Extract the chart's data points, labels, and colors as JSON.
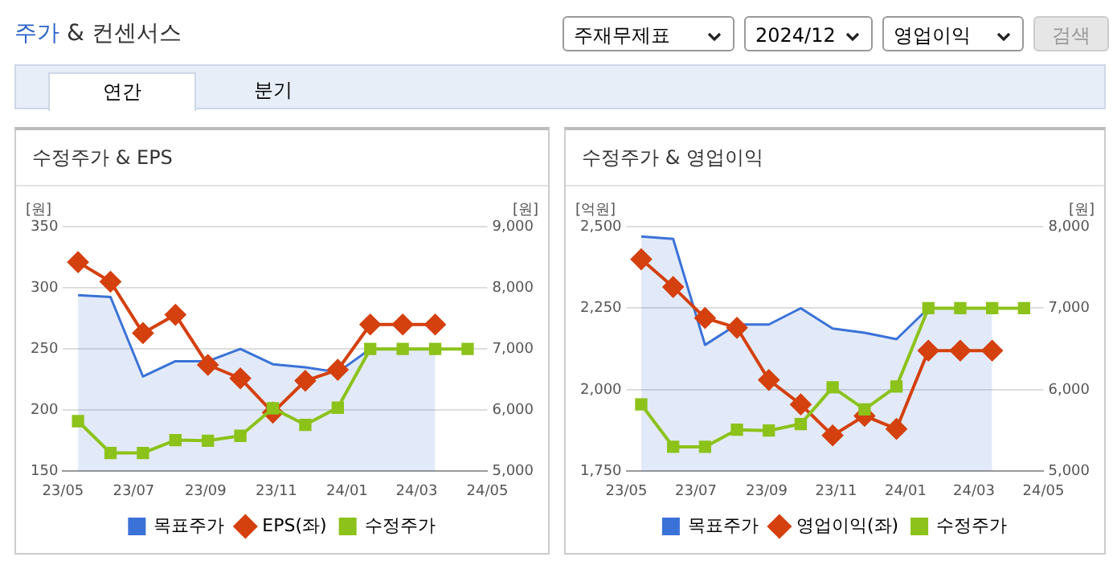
{
  "chart_data": [
    {
      "type": "other",
      "title": "주가 & 컨센서스",
      "annotations": [
        "주재무제표",
        "2024/12",
        "영업이익",
        "검색",
        "연간",
        "분기"
      ]
    },
    {
      "type": "line",
      "title": "수정주가 & EPS",
      "ylabel": "[원]",
      "y2label": "[원]",
      "grid": "y",
      "legend": "bottom",
      "x": [
        "2023-05-14",
        "2023-06-11",
        "2023-07-09",
        "2023-08-06",
        "2023-09-03",
        "2023-10-01",
        "2023-10-29",
        "2023-11-26",
        "2023-12-24",
        "2024-01-21",
        "2024-02-18",
        "2024-03-17",
        "2024-04-14"
      ],
      "xlim": [
        "2023-05",
        "2024-05"
      ],
      "xticks": [
        {
          "value": "2023-05",
          "label": "23/05"
        },
        {
          "value": "2023-07",
          "label": "23/07"
        },
        {
          "value": "2023-09",
          "label": "23/09"
        },
        {
          "value": "2023-11",
          "label": "23/11"
        },
        {
          "value": "2024-01",
          "label": "24/01"
        },
        {
          "value": "2024-03",
          "label": "24/03"
        },
        {
          "value": "2024-05",
          "label": "24/05"
        }
      ],
      "ylim": [
        150,
        350
      ],
      "yticks": [
        150,
        200,
        250,
        300,
        350
      ],
      "y2lim": [
        5000,
        9000
      ],
      "y2ticks": [
        {
          "value": 5000,
          "label": "5,000"
        },
        {
          "value": 6000,
          "label": "6,000"
        },
        {
          "value": 7000,
          "label": "7,000"
        },
        {
          "value": 8000,
          "label": "8,000"
        },
        {
          "value": 9000,
          "label": "9,000"
        }
      ],
      "series": [
        {
          "name": "목표주가",
          "type": "area",
          "color": "#3a72d8",
          "axis": "y2",
          "marker": "none",
          "values": [
            7880,
            7850,
            6550,
            6800,
            6800,
            7000,
            6750,
            6700,
            6620,
            7000,
            7000,
            7000,
            null
          ]
        },
        {
          "name": "EPS(좌)",
          "type": "line",
          "color": "#d4400e",
          "axis": "y",
          "marker": "diamond",
          "values": [
            321,
            305,
            263,
            278,
            237,
            226,
            198,
            224,
            233,
            270,
            270,
            270,
            null
          ]
        },
        {
          "name": "수정주가",
          "type": "line",
          "color": "#8cc21a",
          "axis": "y2",
          "marker": "square",
          "values": [
            5820,
            5300,
            5300,
            5510,
            5500,
            5580,
            6030,
            5760,
            6040,
            7000,
            7000,
            7000,
            7000
          ]
        }
      ]
    },
    {
      "type": "line",
      "title": "수정주가 & 영업이익",
      "ylabel": "[억원]",
      "y2label": "[원]",
      "grid": "y",
      "legend": "bottom",
      "x": [
        "2023-05-14",
        "2023-06-11",
        "2023-07-09",
        "2023-08-06",
        "2023-09-03",
        "2023-10-01",
        "2023-10-29",
        "2023-11-26",
        "2023-12-24",
        "2024-01-21",
        "2024-02-18",
        "2024-03-17",
        "2024-04-14"
      ],
      "xlim": [
        "2023-05",
        "2024-05"
      ],
      "xticks": [
        {
          "value": "2023-05",
          "label": "23/05"
        },
        {
          "value": "2023-07",
          "label": "23/07"
        },
        {
          "value": "2023-09",
          "label": "23/09"
        },
        {
          "value": "2023-11",
          "label": "23/11"
        },
        {
          "value": "2024-01",
          "label": "24/01"
        },
        {
          "value": "2024-03",
          "label": "24/03"
        },
        {
          "value": "2024-05",
          "label": "24/05"
        }
      ],
      "ylim": [
        1750,
        2500
      ],
      "yticks": [
        {
          "value": 1750,
          "label": "1,750"
        },
        {
          "value": 2000,
          "label": "2,000"
        },
        {
          "value": 2250,
          "label": "2,250"
        },
        {
          "value": 2500,
          "label": "2,500"
        }
      ],
      "y2lim": [
        5000,
        8000
      ],
      "y2ticks": [
        {
          "value": 5000,
          "label": "5,000"
        },
        {
          "value": 6000,
          "label": "6,000"
        },
        {
          "value": 7000,
          "label": "7,000"
        },
        {
          "value": 8000,
          "label": "8,000"
        }
      ],
      "series": [
        {
          "name": "목표주가",
          "type": "area",
          "color": "#3a72d8",
          "axis": "y2",
          "marker": "none",
          "values": [
            7880,
            7850,
            6550,
            6800,
            6800,
            7000,
            6750,
            6700,
            6620,
            7000,
            7000,
            7000,
            null
          ]
        },
        {
          "name": "영업이익(좌)",
          "type": "line",
          "color": "#d4400e",
          "axis": "y",
          "marker": "diamond",
          "values": [
            2400,
            2315,
            2220,
            2190,
            2030,
            1955,
            1860,
            1920,
            1880,
            2120,
            2120,
            2120,
            null
          ]
        },
        {
          "name": "수정주가",
          "type": "line",
          "color": "#8cc21a",
          "axis": "y2",
          "marker": "square",
          "values": [
            5820,
            5300,
            5300,
            5510,
            5500,
            5580,
            6030,
            5760,
            6040,
            7000,
            7000,
            7000,
            7000
          ]
        }
      ]
    }
  ]
}
